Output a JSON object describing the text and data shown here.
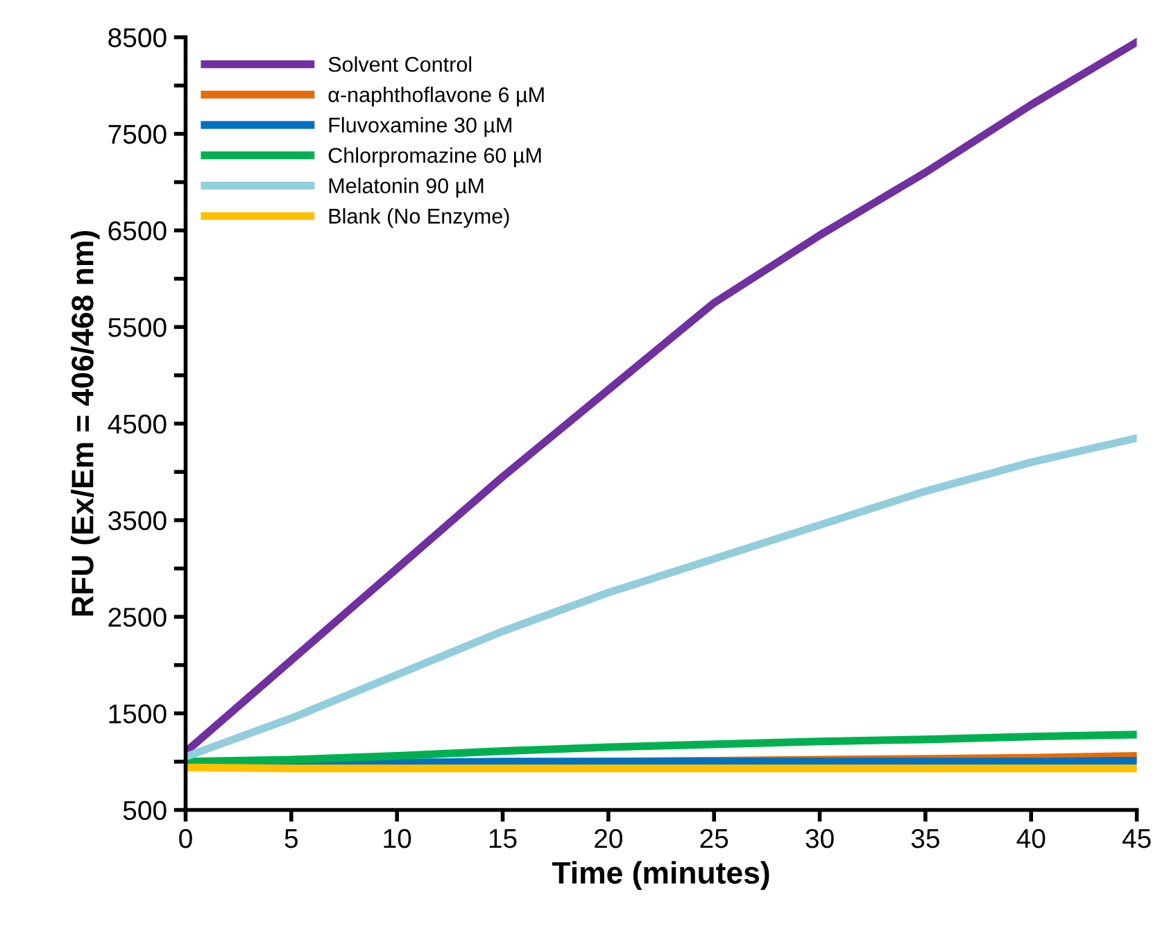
{
  "chart_data": {
    "type": "line",
    "xlabel": "Time (minutes)",
    "ylabel": "RFU (Ex/Em = 406/468 nm)",
    "x": [
      0,
      5,
      10,
      15,
      20,
      25,
      30,
      35,
      40,
      45
    ],
    "series": [
      {
        "name": "Solvent Control",
        "color": "#7030a0",
        "values": [
          1100,
          2050,
          3000,
          3950,
          4850,
          5750,
          6450,
          7100,
          7800,
          8450
        ]
      },
      {
        "name": "α-naphthoflavone 6 µM",
        "color": "#e46c0a",
        "values": [
          null,
          null,
          null,
          990,
          1000,
          1010,
          1020,
          1030,
          1040,
          1060
        ]
      },
      {
        "name": "Fluvoxamine 30 µM",
        "color": "#0070c0",
        "values": [
          1000,
          990,
          990,
          1000,
          1000,
          1000,
          1000,
          1000,
          1000,
          1010
        ]
      },
      {
        "name": "Chlorpromazine 60 µM",
        "color": "#00b050",
        "values": [
          1000,
          1020,
          1060,
          1110,
          1150,
          1180,
          1210,
          1230,
          1260,
          1280
        ]
      },
      {
        "name": "Melatonin 90 µM",
        "color": "#92cddc",
        "values": [
          1050,
          1450,
          1900,
          2350,
          2750,
          3100,
          3450,
          3800,
          4100,
          4350
        ]
      },
      {
        "name": "Blank (No Enzyme)",
        "color": "#ffc000",
        "values": [
          940,
          930,
          930,
          930,
          930,
          930,
          930,
          930,
          930,
          930
        ]
      }
    ],
    "xlim": [
      0,
      45
    ],
    "xticks": [
      0,
      5,
      10,
      15,
      20,
      25,
      30,
      35,
      40,
      45
    ],
    "ylim": [
      500,
      8500
    ],
    "yticks": [
      500,
      {
        "value": 1000,
        "label": null
      },
      1500,
      {
        "value": 2000,
        "label": null
      },
      2500,
      {
        "value": 3000,
        "label": null
      },
      3500,
      {
        "value": 4000,
        "label": null
      },
      4500,
      {
        "value": 5000,
        "label": null
      },
      5500,
      {
        "value": 6000,
        "label": null
      },
      6500,
      {
        "value": 7000,
        "label": null
      },
      7500,
      {
        "value": 8000,
        "label": null
      },
      8500
    ],
    "grid": false,
    "legend": "top left",
    "line_style": "solid",
    "marker": "none"
  }
}
